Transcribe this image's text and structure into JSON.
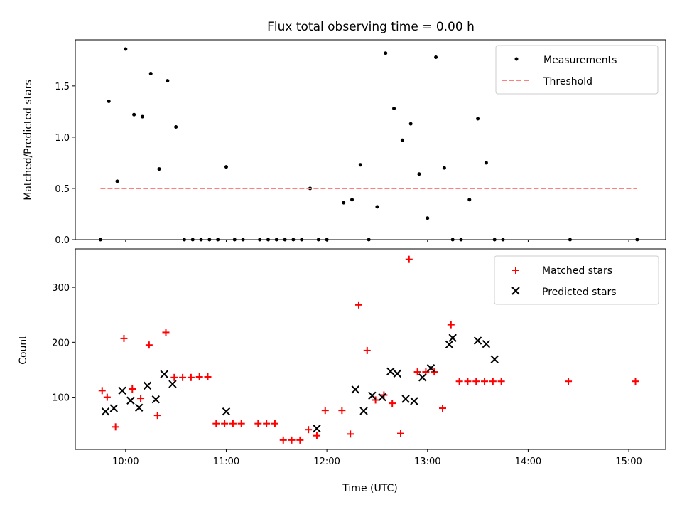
{
  "chart_data": [
    {
      "type": "scatter",
      "title": "Flux total observing time = 0.00 h",
      "xlabel": "",
      "ylabel": "Matched/Predicted stars",
      "xlim": [
        "09:30",
        "15:22"
      ],
      "ylim": [
        0,
        1.95
      ],
      "yticks": [
        0.0,
        0.5,
        1.0,
        1.5
      ],
      "ytick_labels": [
        "0.0",
        "0.5",
        "1.0",
        "1.5"
      ],
      "legend_position": "top-right",
      "grid": false,
      "series": [
        {
          "name": "Measurements",
          "style": "dot",
          "color": "#000000",
          "x": [
            "09:45",
            "09:50",
            "09:55",
            "10:00",
            "10:05",
            "10:10",
            "10:15",
            "10:20",
            "10:25",
            "10:30",
            "10:35",
            "10:40",
            "10:45",
            "10:50",
            "10:55",
            "11:00",
            "11:05",
            "11:10",
            "11:20",
            "11:25",
            "11:30",
            "11:35",
            "11:40",
            "11:45",
            "11:50",
            "11:55",
            "12:00",
            "12:10",
            "12:15",
            "12:20",
            "12:25",
            "12:30",
            "12:35",
            "12:40",
            "12:45",
            "12:50",
            "12:55",
            "13:00",
            "13:05",
            "13:10",
            "13:15",
            "13:20",
            "13:25",
            "13:30",
            "13:35",
            "13:40",
            "13:45",
            "14:25",
            "15:05"
          ],
          "y": [
            0.0,
            1.35,
            0.57,
            1.86,
            1.22,
            1.2,
            1.62,
            0.69,
            1.55,
            1.1,
            0.0,
            0.0,
            0.0,
            0.0,
            0.0,
            0.71,
            0.0,
            0.0,
            0.0,
            0.0,
            0.0,
            0.0,
            0.0,
            0.0,
            0.5,
            0.0,
            0.0,
            0.36,
            0.39,
            0.73,
            0.0,
            0.32,
            1.82,
            1.28,
            0.97,
            1.13,
            0.64,
            0.21,
            1.78,
            0.7,
            0.0,
            0.0,
            0.39,
            1.18,
            0.75,
            0.0,
            0.0,
            0.0,
            0.0
          ]
        },
        {
          "name": "Threshold",
          "style": "dashed-line",
          "color": "#ff7f7f",
          "x": [
            "09:45",
            "15:05"
          ],
          "y": [
            0.5,
            0.5
          ]
        }
      ]
    },
    {
      "type": "scatter",
      "title": "",
      "xlabel": "Time (UTC)",
      "ylabel": "Count",
      "xlim": [
        "09:30",
        "15:22"
      ],
      "ylim": [
        5,
        370
      ],
      "yticks": [
        100,
        200,
        300
      ],
      "ytick_labels": [
        "100",
        "200",
        "300"
      ],
      "xticks": [
        "10:00",
        "11:00",
        "12:00",
        "13:00",
        "14:00",
        "15:00"
      ],
      "xtick_labels": [
        "10:00",
        "11:00",
        "12:00",
        "13:00",
        "14:00",
        "15:00"
      ],
      "legend_position": "top-right",
      "grid": false,
      "series": [
        {
          "name": "Matched stars",
          "marker": "plus",
          "color": "#ff0000",
          "x": [
            "09:46",
            "09:49",
            "09:54",
            "09:59",
            "10:04",
            "10:09",
            "10:14",
            "10:19",
            "10:24",
            "10:29",
            "10:34",
            "10:39",
            "10:44",
            "10:49",
            "10:54",
            "10:59",
            "11:04",
            "11:09",
            "11:19",
            "11:24",
            "11:29",
            "11:34",
            "11:39",
            "11:44",
            "11:49",
            "11:54",
            "11:59",
            "12:09",
            "12:14",
            "12:19",
            "12:24",
            "12:29",
            "12:34",
            "12:39",
            "12:44",
            "12:49",
            "12:54",
            "12:59",
            "13:04",
            "13:09",
            "13:14",
            "13:19",
            "13:24",
            "13:29",
            "13:34",
            "13:39",
            "13:44",
            "14:24",
            "15:04"
          ],
          "y": [
            112,
            100,
            46,
            207,
            115,
            98,
            195,
            67,
            218,
            136,
            136,
            136,
            137,
            137,
            52,
            52,
            52,
            52,
            52,
            52,
            52,
            22,
            22,
            22,
            41,
            30,
            76,
            76,
            33,
            268,
            185,
            95,
            104,
            89,
            34,
            351,
            146,
            146,
            146,
            80,
            232,
            129,
            129,
            129,
            129,
            129,
            129,
            129,
            129
          ]
        },
        {
          "name": "Predicted stars",
          "marker": "x",
          "color": "#000000",
          "x": [
            "09:48",
            "09:53",
            "09:58",
            "10:03",
            "10:08",
            "10:13",
            "10:18",
            "10:23",
            "10:28",
            "11:00",
            "11:54",
            "12:17",
            "12:22",
            "12:27",
            "12:33",
            "12:38",
            "12:42",
            "12:47",
            "12:52",
            "12:57",
            "13:02",
            "13:13",
            "13:15",
            "13:30",
            "13:35",
            "13:40"
          ],
          "y": [
            74,
            80,
            112,
            94,
            81,
            121,
            96,
            142,
            124,
            74,
            43,
            114,
            75,
            103,
            100,
            147,
            143,
            97,
            93,
            136,
            153,
            196,
            208,
            203,
            197,
            169
          ]
        }
      ]
    }
  ]
}
